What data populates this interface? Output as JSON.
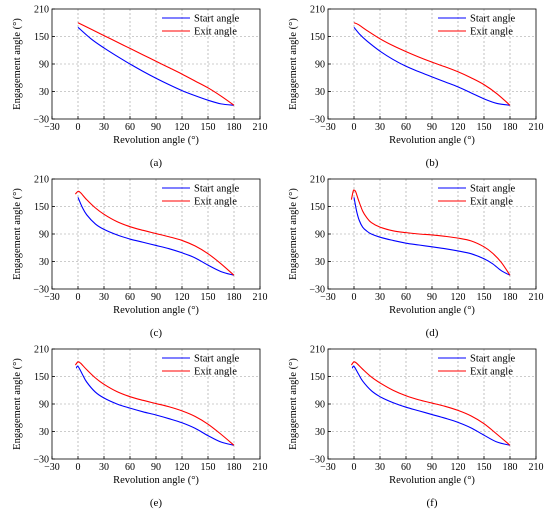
{
  "charts": [
    {
      "panel_label": "(a)",
      "chart_data": {
        "type": "line",
        "xlabel": "Revolution angle (°)",
        "ylabel": "Engagement angle (°)",
        "xlim": [
          -30,
          210
        ],
        "ylim": [
          -30,
          210
        ],
        "xticks": [
          "−30",
          "0",
          "30",
          "60",
          "90",
          "120",
          "150",
          "180",
          "210"
        ],
        "yticks": [
          "−30",
          "30",
          "90",
          "150",
          "210"
        ],
        "grid": true,
        "legend": "top-right",
        "series": [
          {
            "name": "Start angle",
            "color": "#0000ff",
            "x": [
              0,
              15,
              30,
              45,
              60,
              75,
              90,
              105,
              120,
              135,
              150,
              165,
              180
            ],
            "y": [
              170,
              145,
              125,
              107,
              90,
              74,
              59,
              45,
              32,
              21,
              11,
              3,
              0
            ]
          },
          {
            "name": "Exit angle",
            "color": "#ff0000",
            "x": [
              0,
              15,
              30,
              45,
              60,
              75,
              90,
              105,
              120,
              135,
              150,
              165,
              180
            ],
            "y": [
              180,
              166,
              152,
              138,
              124,
              110,
              96,
              82,
              68,
              53,
              38,
              20,
              0
            ]
          }
        ]
      }
    },
    {
      "panel_label": "(b)",
      "chart_data": {
        "type": "line",
        "xlabel": "Revolution angle (°)",
        "ylabel": "Engagement angle (°)",
        "xlim": [
          -30,
          210
        ],
        "ylim": [
          -30,
          210
        ],
        "xticks": [
          "−30",
          "0",
          "30",
          "60",
          "90",
          "120",
          "150",
          "180",
          "210"
        ],
        "yticks": [
          "−30",
          "30",
          "90",
          "150",
          "210"
        ],
        "grid": true,
        "legend": "top-right",
        "series": [
          {
            "name": "Start angle",
            "color": "#0000ff",
            "x": [
              0,
              7,
              15,
              30,
              45,
              60,
              75,
              90,
              105,
              120,
              135,
              150,
              165,
              180
            ],
            "y": [
              170,
              154,
              140,
              118,
              100,
              85,
              73,
              62,
              51,
              40,
              27,
              14,
              4,
              0
            ]
          },
          {
            "name": "Exit angle",
            "color": "#ff0000",
            "x": [
              0,
              5,
              15,
              30,
              45,
              60,
              75,
              90,
              105,
              120,
              135,
              150,
              165,
              180
            ],
            "y": [
              180,
              176,
              163,
              145,
              130,
              117,
              105,
              94,
              84,
              73,
              60,
              45,
              25,
              0
            ]
          }
        ]
      }
    },
    {
      "panel_label": "(c)",
      "chart_data": {
        "type": "line",
        "xlabel": "Revolution angle (°)",
        "ylabel": "Engagement angle (°)",
        "xlim": [
          -30,
          210
        ],
        "ylim": [
          -30,
          210
        ],
        "xticks": [
          "−30",
          "0",
          "30",
          "60",
          "90",
          "120",
          "150",
          "180",
          "210"
        ],
        "yticks": [
          "−30",
          "30",
          "90",
          "150",
          "210"
        ],
        "grid": true,
        "legend": "top-right",
        "series": [
          {
            "name": "Start angle",
            "color": "#0000ff",
            "x": [
              0,
              5,
              10,
              20,
              30,
              45,
              60,
              75,
              90,
              105,
              120,
              135,
              150,
              165,
              180
            ],
            "y": [
              170,
              148,
              132,
              112,
              100,
              88,
              79,
              72,
              65,
              58,
              49,
              38,
              22,
              8,
              0
            ]
          },
          {
            "name": "Exit angle",
            "color": "#ff0000",
            "x": [
              -3,
              0,
              3,
              10,
              20,
              30,
              45,
              60,
              75,
              90,
              105,
              120,
              135,
              150,
              165,
              180
            ],
            "y": [
              177,
              183,
              180,
              165,
              147,
              133,
              117,
              106,
              98,
              91,
              84,
              76,
              64,
              47,
              25,
              0
            ]
          }
        ]
      }
    },
    {
      "panel_label": "(d)",
      "chart_data": {
        "type": "line",
        "xlabel": "Revolution angle (°)",
        "ylabel": "Engagement angle (°)",
        "xlim": [
          -30,
          210
        ],
        "ylim": [
          -30,
          210
        ],
        "xticks": [
          "−30",
          "0",
          "30",
          "60",
          "90",
          "120",
          "150",
          "180",
          "210"
        ],
        "yticks": [
          "−30",
          "30",
          "90",
          "150",
          "210"
        ],
        "grid": true,
        "legend": "top-right",
        "series": [
          {
            "name": "Start angle",
            "color": "#0000ff",
            "x": [
              0,
              3,
              6,
              10,
              15,
              20,
              30,
              45,
              60,
              75,
              90,
              105,
              120,
              135,
              150,
              160,
              170,
              180
            ],
            "y": [
              170,
              140,
              120,
              105,
              96,
              90,
              83,
              76,
              70,
              66,
              62,
              58,
              53,
              47,
              36,
              25,
              10,
              0
            ]
          },
          {
            "name": "Exit angle",
            "color": "#ff0000",
            "x": [
              -3,
              -1,
              0,
              2,
              5,
              10,
              15,
              20,
              30,
              45,
              60,
              75,
              90,
              105,
              120,
              135,
              150,
              160,
              170,
              180
            ],
            "y": [
              165,
              183,
              186,
              182,
              165,
              140,
              125,
              115,
              105,
              97,
              93,
              90,
              88,
              85,
              81,
              75,
              62,
              48,
              28,
              0
            ]
          }
        ]
      }
    },
    {
      "panel_label": "(e)",
      "chart_data": {
        "type": "line",
        "xlabel": "Revolution angle (°)",
        "ylabel": "Engagement angle (°)",
        "xlim": [
          -30,
          210
        ],
        "ylim": [
          -30,
          210
        ],
        "xticks": [
          "−30",
          "0",
          "30",
          "60",
          "90",
          "120",
          "150",
          "180",
          "210"
        ],
        "yticks": [
          "−30",
          "30",
          "90",
          "150",
          "210"
        ],
        "grid": true,
        "legend": "top-right",
        "series": [
          {
            "name": "Start angle",
            "color": "#0000ff",
            "x": [
              -2,
              0,
              5,
              10,
              20,
              30,
              45,
              60,
              75,
              90,
              105,
              120,
              135,
              150,
              165,
              180
            ],
            "y": [
              168,
              172,
              155,
              138,
              116,
              103,
              90,
              81,
              73,
              66,
              58,
              49,
              37,
              21,
              7,
              0
            ]
          },
          {
            "name": "Exit angle",
            "color": "#ff0000",
            "x": [
              -3,
              0,
              3,
              10,
              20,
              30,
              45,
              60,
              75,
              90,
              105,
              120,
              135,
              150,
              165,
              180
            ],
            "y": [
              175,
              182,
              179,
              165,
              147,
              133,
              117,
              106,
              98,
              91,
              84,
              75,
              63,
              46,
              24,
              0
            ]
          }
        ]
      }
    },
    {
      "panel_label": "(f)",
      "chart_data": {
        "type": "line",
        "xlabel": "Revolution angle (°)",
        "ylabel": "Engagement angle (°)",
        "xlim": [
          -30,
          210
        ],
        "ylim": [
          -30,
          210
        ],
        "xticks": [
          "−30",
          "0",
          "30",
          "60",
          "90",
          "120",
          "150",
          "180",
          "210"
        ],
        "yticks": [
          "−30",
          "30",
          "90",
          "150",
          "210"
        ],
        "grid": true,
        "legend": "top-right",
        "series": [
          {
            "name": "Start angle",
            "color": "#0000ff",
            "x": [
              -2,
              0,
              5,
              10,
              20,
              30,
              45,
              60,
              75,
              90,
              105,
              120,
              135,
              150,
              165,
              180
            ],
            "y": [
              168,
              172,
              156,
              140,
              119,
              106,
              93,
              83,
              75,
              67,
              59,
              50,
              38,
              22,
              7,
              0
            ]
          },
          {
            "name": "Exit angle",
            "color": "#ff0000",
            "x": [
              -3,
              0,
              3,
              10,
              20,
              30,
              45,
              60,
              75,
              90,
              105,
              120,
              135,
              150,
              165,
              180
            ],
            "y": [
              175,
              182,
              179,
              166,
              149,
              136,
              120,
              108,
              99,
              92,
              85,
              76,
              64,
              47,
              24,
              0
            ]
          }
        ]
      }
    }
  ]
}
